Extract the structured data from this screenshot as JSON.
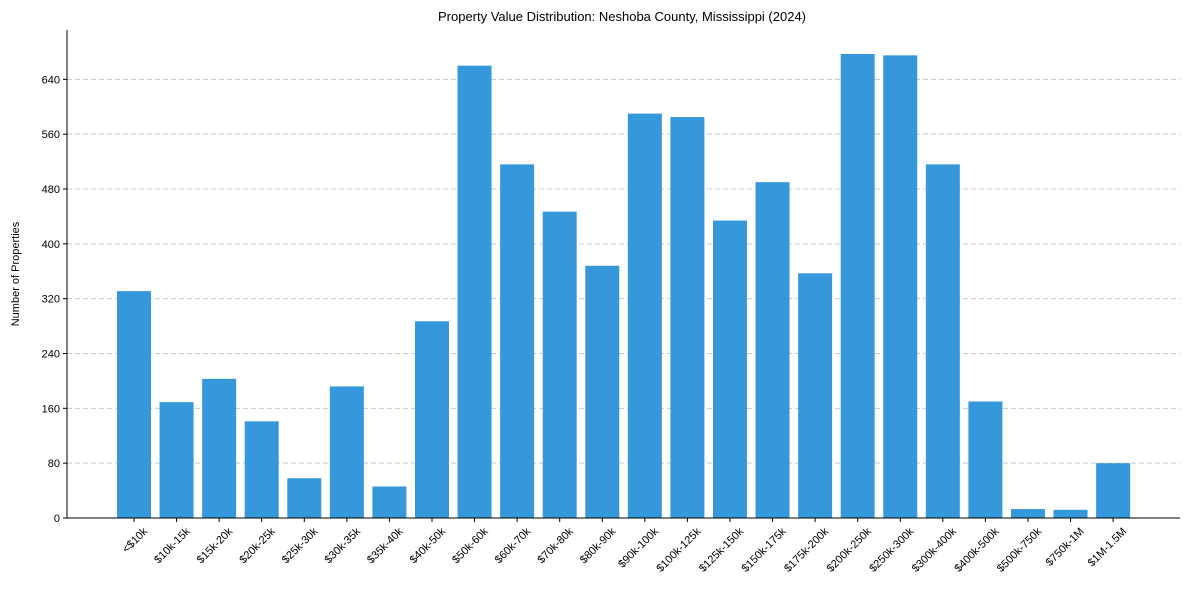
{
  "chart_data": {
    "type": "bar",
    "title": "Property Value Distribution: Neshoba County, Mississippi (2024)",
    "xlabel": "",
    "ylabel": "Number of Properties",
    "ylim": [
      0,
      712
    ],
    "yticks": [
      0,
      80,
      160,
      240,
      320,
      400,
      480,
      560,
      640
    ],
    "grid": "y-dashed",
    "color": "#3498db",
    "categories": [
      "<$10k",
      "$10k-15k",
      "$15k-20k",
      "$20k-25k",
      "$25k-30k",
      "$30k-35k",
      "$35k-40k",
      "$40k-50k",
      "$50k-60k",
      "$60k-70k",
      "$70k-80k",
      "$80k-90k",
      "$90k-100k",
      "$100k-125k",
      "$125k-150k",
      "$150k-175k",
      "$175k-200k",
      "$200k-250k",
      "$250k-300k",
      "$300k-400k",
      "$400k-500k",
      "$500k-750k",
      "$750k-1M",
      "$1M-1.5M"
    ],
    "values": [
      331,
      169,
      203,
      141,
      58,
      192,
      46,
      287,
      660,
      516,
      447,
      368,
      590,
      585,
      434,
      490,
      357,
      677,
      675,
      516,
      170,
      13,
      12,
      80
    ]
  }
}
